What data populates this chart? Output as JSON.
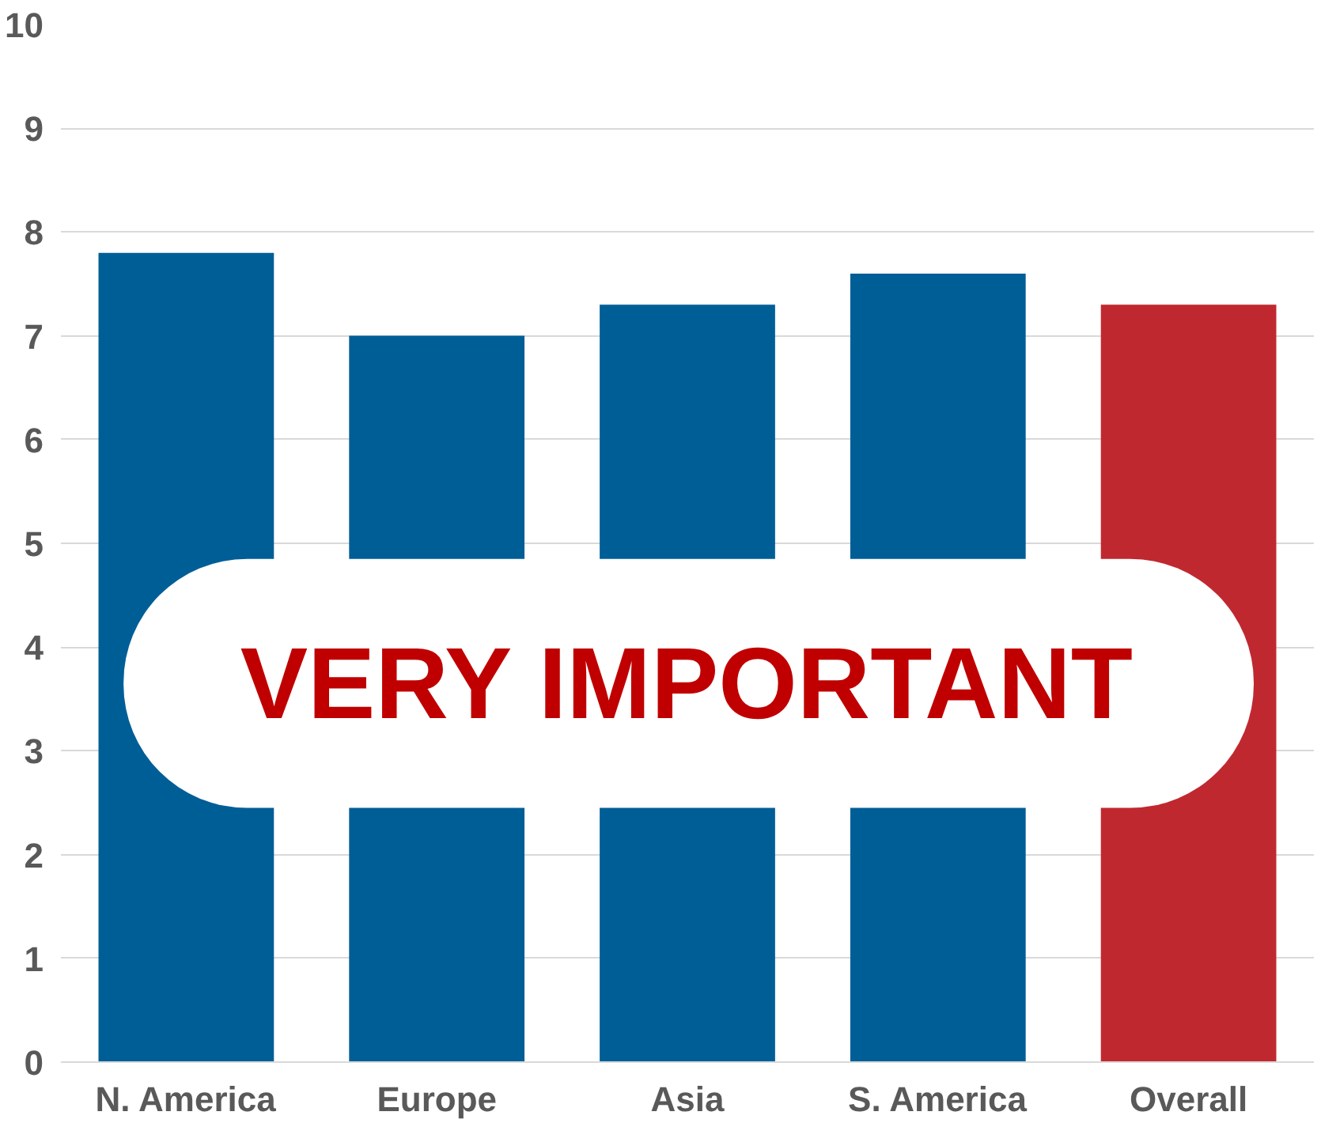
{
  "chart_data": {
    "type": "bar",
    "categories": [
      "N. America",
      "Europe",
      "Asia",
      "S. America",
      "Overall"
    ],
    "values": [
      7.8,
      7.0,
      7.3,
      7.6,
      7.3
    ],
    "colors": [
      "#005e97",
      "#005e97",
      "#005e97",
      "#005e97",
      "#c0282f"
    ],
    "ylim": [
      0,
      10
    ],
    "yticks": [
      0,
      1,
      2,
      3,
      4,
      5,
      6,
      7,
      8,
      9,
      10
    ],
    "grid": "y",
    "annotations": [
      "VERY IMPORTANT"
    ]
  }
}
